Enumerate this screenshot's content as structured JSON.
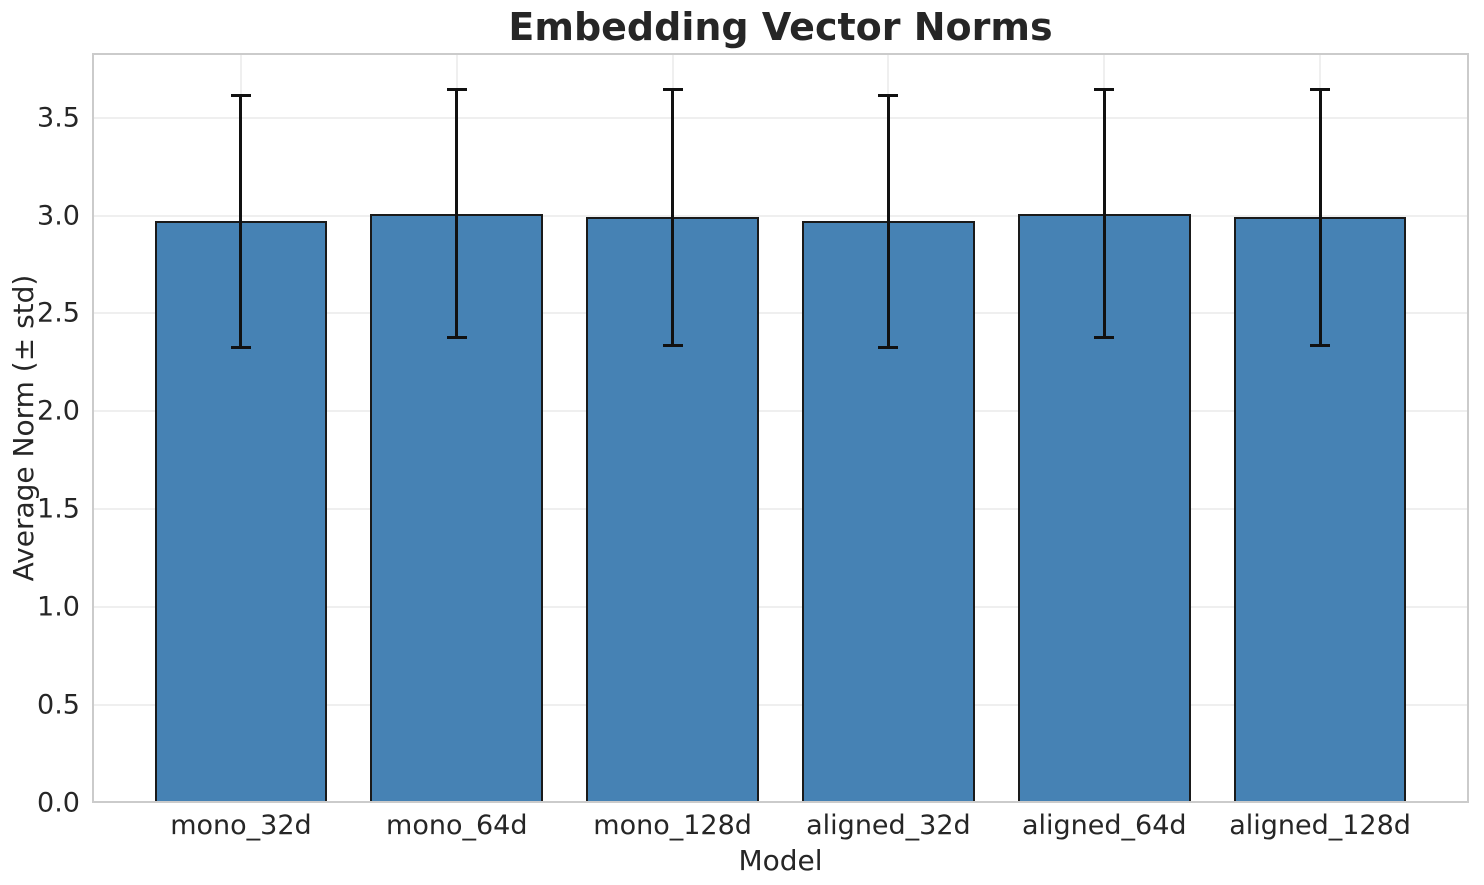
{
  "figure": {
    "title": "Embedding Vector Norms"
  },
  "chart_data": {
    "type": "bar",
    "title": "Embedding Vector Norms",
    "xlabel": "Model",
    "ylabel": "Average Norm (± std)",
    "categories": [
      "mono_32d",
      "mono_64d",
      "mono_128d",
      "aligned_32d",
      "aligned_64d",
      "aligned_128d"
    ],
    "values": [
      2.97,
      3.01,
      2.99,
      2.97,
      3.01,
      2.99
    ],
    "errors": [
      0.65,
      0.64,
      0.66,
      0.65,
      0.64,
      0.66
    ],
    "error_style": "plus-minus std with caps",
    "ylim": [
      0,
      3.83
    ],
    "ytick_labels": [
      "0.0",
      "0.5",
      "1.0",
      "1.5",
      "2.0",
      "2.5",
      "3.0",
      "3.5"
    ],
    "grid": "both-x-and-y-light",
    "legend_position": "none",
    "bar_width_frac": 0.8,
    "colors": {
      "bar_fill": "#4682b4",
      "bar_edge": "#1a1a1a",
      "error_bar": "#111111",
      "gridline": "#efefef",
      "plot_border": "#cbcbcb",
      "text": "#262626",
      "background": "#ffffff"
    }
  }
}
